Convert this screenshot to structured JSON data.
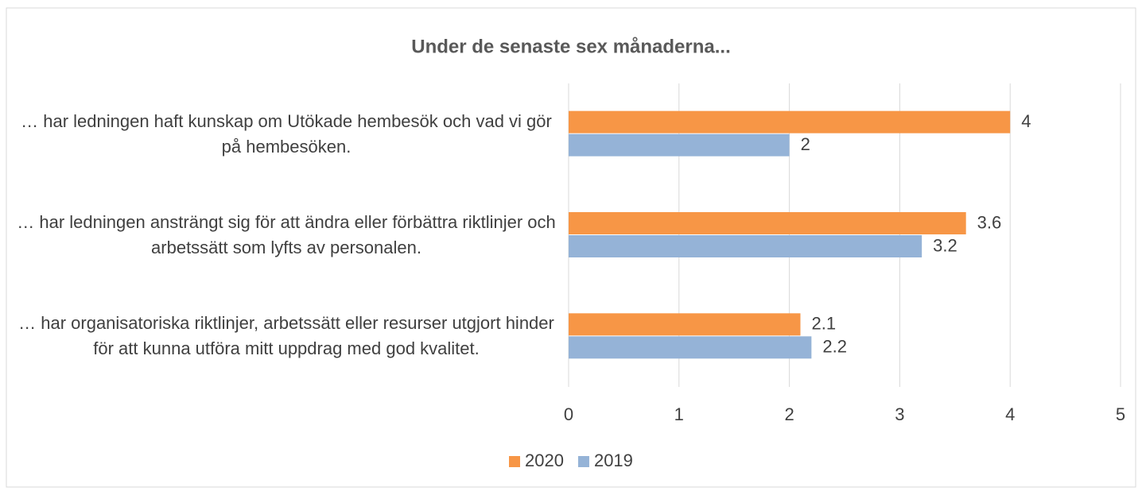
{
  "chart_data": {
    "type": "barh",
    "title": "Under de senaste sex månaderna...",
    "categories": [
      "… har ledningen haft kunskap om Utökade hembesök och vad vi gör på hembesöken.",
      "… har ledningen ansträngt sig för att ändra eller förbättra riktlinjer och arbetssätt som lyfts av personalen.",
      "… har organisatoriska riktlinjer, arbetssätt eller resurser utgjort hinder för att kunna utföra mitt uppdrag med god kvalitet."
    ],
    "series": [
      {
        "name": "2020",
        "color": "#f79646",
        "values": [
          4,
          3.6,
          2.1
        ]
      },
      {
        "name": "2019",
        "color": "#95b3d7",
        "values": [
          2,
          3.2,
          2.2
        ]
      }
    ],
    "xlim": [
      0,
      5
    ],
    "xticks": [
      0,
      1,
      2,
      3,
      4,
      5
    ],
    "grid": true,
    "legend": "bottom"
  }
}
